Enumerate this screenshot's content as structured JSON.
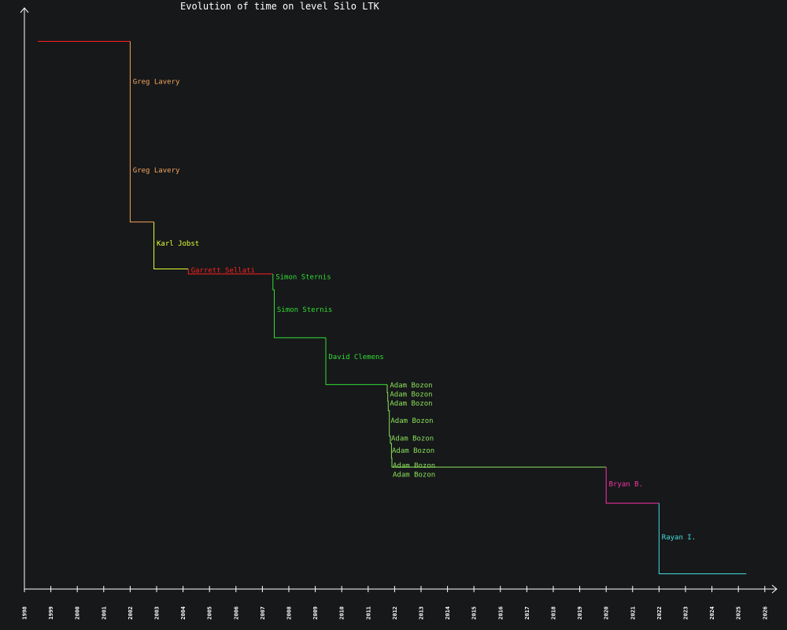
{
  "chart_data": {
    "type": "line",
    "title": "Evolution of time on level Silo LTK",
    "xlabel": "",
    "ylabel": "",
    "x_ticks": [
      "1998",
      "1999",
      "2000",
      "2001",
      "2002",
      "2003",
      "2004",
      "2005",
      "2006",
      "2007",
      "2008",
      "2009",
      "2010",
      "2011",
      "2012",
      "2013",
      "2014",
      "2015",
      "2016",
      "2017",
      "2018",
      "2019",
      "2020",
      "2021",
      "2022",
      "2023",
      "2024",
      "2025",
      "2026"
    ],
    "xlim": [
      1998,
      2026.5
    ],
    "y_axis_labels": "none",
    "grid": false,
    "legend": "none",
    "colors": {
      "background": "#16181a",
      "axis": "#ffffff",
      "title": "#ffffff"
    },
    "segments": [
      {
        "color": "#ff2020",
        "points": [
          [
            1998.5,
            0.97
          ],
          [
            2002.0,
            0.97
          ]
        ]
      },
      {
        "color": "#f5a55a",
        "points": [
          [
            2002.0,
            0.97
          ],
          [
            2002.0,
            0.65
          ],
          [
            2002.9,
            0.65
          ]
        ]
      },
      {
        "color": "#e6ff33",
        "points": [
          [
            2002.9,
            0.65
          ],
          [
            2002.9,
            0.567
          ],
          [
            2004.2,
            0.567
          ]
        ]
      },
      {
        "color": "#ff2020",
        "points": [
          [
            2004.2,
            0.567
          ],
          [
            2004.2,
            0.558
          ],
          [
            2007.4,
            0.558
          ]
        ]
      },
      {
        "color": "#33dd33",
        "points": [
          [
            2007.4,
            0.558
          ],
          [
            2007.4,
            0.53
          ],
          [
            2007.45,
            0.53
          ],
          [
            2007.45,
            0.445
          ],
          [
            2009.4,
            0.445
          ]
        ]
      },
      {
        "color": "#33dd33",
        "points": [
          [
            2009.4,
            0.445
          ],
          [
            2009.4,
            0.362
          ],
          [
            2011.72,
            0.362
          ]
        ]
      },
      {
        "color": "#8ce05a",
        "points": [
          [
            2011.72,
            0.362
          ],
          [
            2011.72,
            0.348
          ],
          [
            2011.74,
            0.348
          ],
          [
            2011.74,
            0.333
          ],
          [
            2011.76,
            0.333
          ],
          [
            2011.76,
            0.316
          ],
          [
            2011.8,
            0.316
          ],
          [
            2011.8,
            0.271
          ],
          [
            2011.84,
            0.271
          ],
          [
            2011.84,
            0.258
          ],
          [
            2011.88,
            0.258
          ],
          [
            2011.88,
            0.232
          ],
          [
            2011.9,
            0.232
          ],
          [
            2011.9,
            0.216
          ],
          [
            2020.0,
            0.216
          ]
        ]
      },
      {
        "color": "#ff33aa",
        "points": [
          [
            2020.0,
            0.216
          ],
          [
            2020.0,
            0.152
          ],
          [
            2022.0,
            0.152
          ]
        ]
      },
      {
        "color": "#44dddd",
        "points": [
          [
            2022.0,
            0.152
          ],
          [
            2022.0,
            0.027
          ],
          [
            2025.3,
            0.027
          ]
        ]
      }
    ],
    "annotations": [
      {
        "text": "Greg Lavery",
        "x": 2002.1,
        "y": 0.895,
        "color": "#f5a55a"
      },
      {
        "text": "Greg Lavery",
        "x": 2002.1,
        "y": 0.738,
        "color": "#f5a55a"
      },
      {
        "text": "Karl Jobst",
        "x": 2003.0,
        "y": 0.608,
        "color": "#e6ff33"
      },
      {
        "text": "Garrett Sellati",
        "x": 2004.3,
        "y": 0.561,
        "color": "#ff2020"
      },
      {
        "text": "Simon Sternis",
        "x": 2007.5,
        "y": 0.549,
        "color": "#33dd33"
      },
      {
        "text": "Simon Sternis",
        "x": 2007.55,
        "y": 0.491,
        "color": "#33dd33"
      },
      {
        "text": "David Clemens",
        "x": 2009.5,
        "y": 0.407,
        "color": "#33dd33"
      },
      {
        "text": "Adam Bozon",
        "x": 2011.82,
        "y": 0.357,
        "color": "#8ce05a"
      },
      {
        "text": "Adam Bozon",
        "x": 2011.82,
        "y": 0.341,
        "color": "#8ce05a"
      },
      {
        "text": "Adam Bozon",
        "x": 2011.82,
        "y": 0.325,
        "color": "#8ce05a"
      },
      {
        "text": "Adam Bozon",
        "x": 2011.85,
        "y": 0.294,
        "color": "#8ce05a"
      },
      {
        "text": "Adam Bozon",
        "x": 2011.87,
        "y": 0.263,
        "color": "#8ce05a"
      },
      {
        "text": "Adam Bozon",
        "x": 2011.9,
        "y": 0.241,
        "color": "#8ce05a"
      },
      {
        "text": "Adam Bozon",
        "x": 2011.93,
        "y": 0.215,
        "color": "#8ce05a"
      },
      {
        "text": "Adam Bozon",
        "x": 2011.93,
        "y": 0.199,
        "color": "#8ce05a"
      },
      {
        "text": "Bryan B.",
        "x": 2020.1,
        "y": 0.182,
        "color": "#ff33aa"
      },
      {
        "text": "Rayan I.",
        "x": 2022.1,
        "y": 0.088,
        "color": "#44dddd"
      }
    ]
  }
}
